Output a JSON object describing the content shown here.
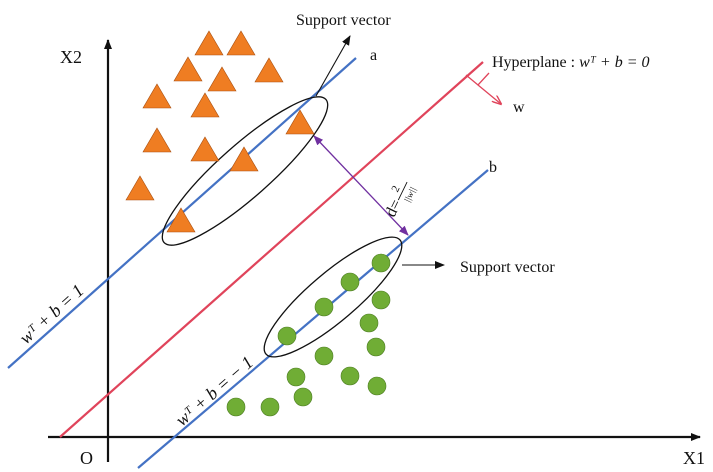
{
  "axes": {
    "y_label": "X2",
    "x_label": "X1",
    "origin_label": "O"
  },
  "lines": {
    "upper_label": "a",
    "lower_label": "b",
    "upper_equation": "wᵀ + b = 1",
    "lower_equation": "wᵀ + b = − 1",
    "hyperplane_text": "Hyperplane : ",
    "hyperplane_equation": "wᵀ + b = 0",
    "normal_label": "w"
  },
  "margin": {
    "prefix": "d=",
    "numerator": "2",
    "denominator": "||w||"
  },
  "callouts": {
    "top": "Support vector",
    "bottom": "Support vector"
  },
  "colors": {
    "triangle": "#ef7d22",
    "circle": "#70ad35",
    "margin_line": "#4472c4",
    "hyperplane": "#e0445b",
    "distance_arrow": "#7030a0"
  }
}
